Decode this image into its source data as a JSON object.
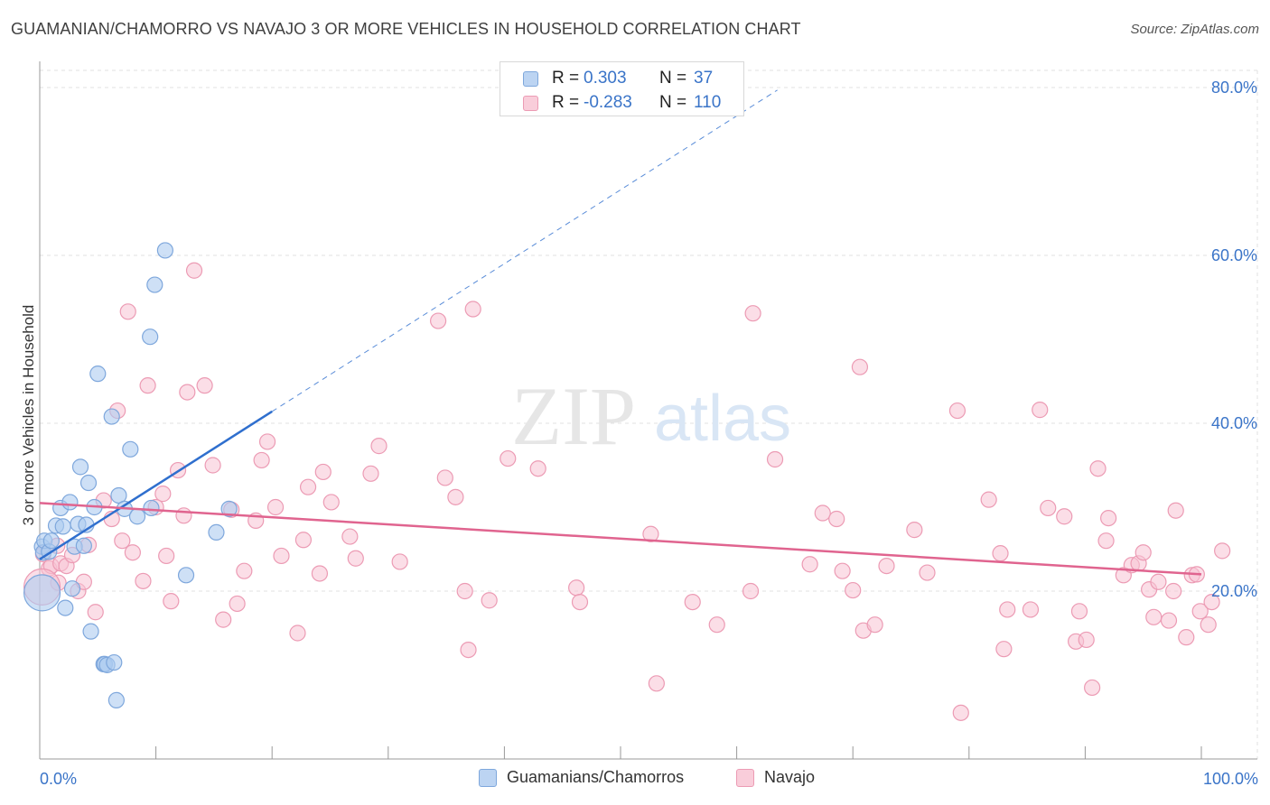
{
  "title": "GUAMANIAN/CHAMORRO VS NAVAJO 3 OR MORE VEHICLES IN HOUSEHOLD CORRELATION CHART",
  "source": "Source: ZipAtlas.com",
  "watermark": {
    "zip": "ZIP",
    "atlas": "atlas"
  },
  "colors": {
    "blue_fill": "#aecbf0",
    "blue_stroke": "#7ea7dc",
    "blue_line": "#2f6fce",
    "pink_fill": "#f8c3d3",
    "pink_stroke": "#ec9bb4",
    "pink_line": "#e0648f",
    "accent_text": "#3a74c8",
    "grid": "#e2e2e2"
  },
  "legend_stats": [
    {
      "r_label": "R =",
      "r_value": "0.303",
      "n_label": "N =",
      "n_value": "37"
    },
    {
      "r_label": "R =",
      "r_value": "-0.283",
      "n_label": "N =",
      "n_value": "110"
    }
  ],
  "chart_data": {
    "type": "scatter",
    "title": "GUAMANIAN/CHAMORRO VS NAVAJO 3 OR MORE VEHICLES IN HOUSEHOLD CORRELATION CHART",
    "xlabel": "",
    "ylabel": "3 or more Vehicles in Household",
    "xlim": [
      0,
      100
    ],
    "ylim": [
      0,
      82
    ],
    "x_tick_labels": [
      "0.0%",
      "100.0%"
    ],
    "y_ticks": [
      20,
      40,
      60,
      80
    ],
    "y_tick_labels": [
      "20.0%",
      "40.0%",
      "60.0%",
      "80.0%"
    ],
    "grid": true,
    "legend_position": "bottom",
    "series": [
      {
        "name": "Guamanians/Chamorros",
        "color": "#aecbf0",
        "trend": {
          "x": [
            0,
            20
          ],
          "y": [
            23.8,
            41.4
          ],
          "dashed_extension": {
            "x": [
              20,
              63.5
            ],
            "y": [
              41.4,
              79.7
            ]
          }
        },
        "points": [
          [
            0.2,
            25.3
          ],
          [
            0.3,
            24.6
          ],
          [
            0.4,
            26.0
          ],
          [
            0.8,
            24.7
          ],
          [
            1.0,
            26.0
          ],
          [
            1.4,
            27.8
          ],
          [
            1.8,
            29.9
          ],
          [
            2.0,
            27.7
          ],
          [
            2.2,
            18.0
          ],
          [
            2.6,
            30.6
          ],
          [
            2.8,
            20.3
          ],
          [
            3.0,
            25.3
          ],
          [
            3.3,
            28.0
          ],
          [
            3.5,
            34.8
          ],
          [
            3.8,
            25.4
          ],
          [
            4.0,
            27.9
          ],
          [
            4.2,
            32.9
          ],
          [
            4.4,
            15.2
          ],
          [
            4.7,
            30.0
          ],
          [
            5.0,
            45.9
          ],
          [
            5.5,
            11.3
          ],
          [
            5.6,
            11.3
          ],
          [
            5.8,
            11.2
          ],
          [
            6.2,
            40.8
          ],
          [
            6.4,
            11.5
          ],
          [
            6.6,
            7.0
          ],
          [
            6.8,
            31.4
          ],
          [
            7.3,
            29.8
          ],
          [
            7.8,
            36.9
          ],
          [
            8.4,
            28.9
          ],
          [
            9.5,
            50.3
          ],
          [
            9.6,
            29.9
          ],
          [
            9.9,
            56.5
          ],
          [
            10.8,
            60.6
          ],
          [
            12.6,
            21.9
          ],
          [
            15.2,
            27.0
          ],
          [
            16.3,
            29.8
          ]
        ],
        "big_point": [
          0.2,
          19.8
        ]
      },
      {
        "name": "Navajo",
        "color": "#f8c3d3",
        "trend": {
          "x": [
            0,
            100
          ],
          "y": [
            30.5,
            22.0
          ]
        },
        "points": [
          [
            0.3,
            24.4
          ],
          [
            0.8,
            22.7
          ],
          [
            1.0,
            23.0
          ],
          [
            1.5,
            25.4
          ],
          [
            1.6,
            21.0
          ],
          [
            1.8,
            23.3
          ],
          [
            2.3,
            23.0
          ],
          [
            2.8,
            24.3
          ],
          [
            3.3,
            20.0
          ],
          [
            3.8,
            21.1
          ],
          [
            4.2,
            25.5
          ],
          [
            4.8,
            17.5
          ],
          [
            5.5,
            30.8
          ],
          [
            6.2,
            28.6
          ],
          [
            6.7,
            41.5
          ],
          [
            7.1,
            26.0
          ],
          [
            7.6,
            53.3
          ],
          [
            8.0,
            24.6
          ],
          [
            8.9,
            21.2
          ],
          [
            9.3,
            44.5
          ],
          [
            10.0,
            30.0
          ],
          [
            10.6,
            31.6
          ],
          [
            10.9,
            24.2
          ],
          [
            11.3,
            18.8
          ],
          [
            11.9,
            34.4
          ],
          [
            12.4,
            29.0
          ],
          [
            12.7,
            43.7
          ],
          [
            13.3,
            58.2
          ],
          [
            14.2,
            44.5
          ],
          [
            14.9,
            35.0
          ],
          [
            15.8,
            16.6
          ],
          [
            16.5,
            29.7
          ],
          [
            17.0,
            18.5
          ],
          [
            17.6,
            22.4
          ],
          [
            18.6,
            28.4
          ],
          [
            19.1,
            35.6
          ],
          [
            19.6,
            37.8
          ],
          [
            20.3,
            30.0
          ],
          [
            20.8,
            24.2
          ],
          [
            22.2,
            15.0
          ],
          [
            22.7,
            26.1
          ],
          [
            23.1,
            32.4
          ],
          [
            24.1,
            22.1
          ],
          [
            24.4,
            34.2
          ],
          [
            25.1,
            30.6
          ],
          [
            26.7,
            26.5
          ],
          [
            27.2,
            23.9
          ],
          [
            28.5,
            34.0
          ],
          [
            29.2,
            37.3
          ],
          [
            31.0,
            23.5
          ],
          [
            34.3,
            52.2
          ],
          [
            34.9,
            33.5
          ],
          [
            35.8,
            31.2
          ],
          [
            36.6,
            20.0
          ],
          [
            36.9,
            13.0
          ],
          [
            37.3,
            53.6
          ],
          [
            38.7,
            18.9
          ],
          [
            40.3,
            35.8
          ],
          [
            42.9,
            34.6
          ],
          [
            46.2,
            20.4
          ],
          [
            46.5,
            18.7
          ],
          [
            52.6,
            26.8
          ],
          [
            53.1,
            9.0
          ],
          [
            56.2,
            18.7
          ],
          [
            58.3,
            16.0
          ],
          [
            61.2,
            20.0
          ],
          [
            61.4,
            53.1
          ],
          [
            63.3,
            35.7
          ],
          [
            66.3,
            23.2
          ],
          [
            67.4,
            29.3
          ],
          [
            68.6,
            28.6
          ],
          [
            69.1,
            22.4
          ],
          [
            70.0,
            20.1
          ],
          [
            70.6,
            46.7
          ],
          [
            70.9,
            15.3
          ],
          [
            71.9,
            16.0
          ],
          [
            72.9,
            23.0
          ],
          [
            75.3,
            27.3
          ],
          [
            76.4,
            22.2
          ],
          [
            79.0,
            41.5
          ],
          [
            79.3,
            5.5
          ],
          [
            81.7,
            30.9
          ],
          [
            82.7,
            24.5
          ],
          [
            83.0,
            13.1
          ],
          [
            83.3,
            17.8
          ],
          [
            85.3,
            17.8
          ],
          [
            86.1,
            41.6
          ],
          [
            86.8,
            29.9
          ],
          [
            88.2,
            28.9
          ],
          [
            89.2,
            14.0
          ],
          [
            89.5,
            17.6
          ],
          [
            90.1,
            14.2
          ],
          [
            90.6,
            8.5
          ],
          [
            91.1,
            34.6
          ],
          [
            91.8,
            26.0
          ],
          [
            92.0,
            28.7
          ],
          [
            93.3,
            21.9
          ],
          [
            94.0,
            23.1
          ],
          [
            94.6,
            23.3
          ],
          [
            95.0,
            24.6
          ],
          [
            95.5,
            20.2
          ],
          [
            95.9,
            16.9
          ],
          [
            96.3,
            21.1
          ],
          [
            97.2,
            16.5
          ],
          [
            97.6,
            20.0
          ],
          [
            97.8,
            29.6
          ],
          [
            98.7,
            14.5
          ],
          [
            99.2,
            21.9
          ],
          [
            99.6,
            22.0
          ],
          [
            99.9,
            17.6
          ],
          [
            100.6,
            16.0
          ],
          [
            100.9,
            18.7
          ],
          [
            101.8,
            24.8
          ]
        ],
        "big_point": [
          0.2,
          20.5
        ]
      }
    ]
  }
}
